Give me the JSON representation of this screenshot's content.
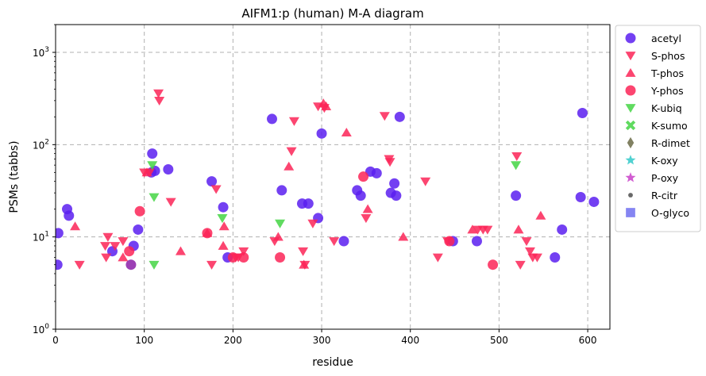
{
  "chart_data": {
    "type": "scatter",
    "title": "AIFM1:p (human) M-A diagram",
    "xlabel": "residue",
    "ylabel": "PSMs (tabbs)",
    "xlim": [
      0,
      625
    ],
    "ylim": [
      1,
      2000
    ],
    "yscale": "log",
    "grid": true,
    "legend_position": "right",
    "x_ticks": [
      {
        "value": 0,
        "label": "0"
      },
      {
        "value": 100,
        "label": "100"
      },
      {
        "value": 200,
        "label": "200"
      },
      {
        "value": 300,
        "label": "300"
      },
      {
        "value": 400,
        "label": "400"
      },
      {
        "value": 500,
        "label": "500"
      },
      {
        "value": 600,
        "label": "600"
      }
    ],
    "y_ticks": [
      {
        "value": 1,
        "base": "10",
        "exp": "0"
      },
      {
        "value": 10,
        "base": "10",
        "exp": "1"
      },
      {
        "value": 100,
        "base": "10",
        "exp": "2"
      },
      {
        "value": 1000,
        "base": "10",
        "exp": "3"
      }
    ],
    "series": [
      {
        "name": "acetyl",
        "marker": "circle",
        "color": "#5b1ff0",
        "points": [
          [
            2,
            5
          ],
          [
            3,
            11
          ],
          [
            13,
            20
          ],
          [
            15,
            17
          ],
          [
            64,
            7
          ],
          [
            88,
            8
          ],
          [
            93,
            12
          ],
          [
            108,
            50
          ],
          [
            109,
            80
          ],
          [
            112,
            52
          ],
          [
            127,
            54
          ],
          [
            176,
            40
          ],
          [
            189,
            21
          ],
          [
            194,
            6
          ],
          [
            244,
            190
          ],
          [
            255,
            32
          ],
          [
            278,
            23
          ],
          [
            285,
            23
          ],
          [
            296,
            16
          ],
          [
            300,
            132
          ],
          [
            325,
            9
          ],
          [
            340,
            32
          ],
          [
            344,
            28
          ],
          [
            355,
            51
          ],
          [
            362,
            49
          ],
          [
            378,
            30
          ],
          [
            382,
            38
          ],
          [
            384,
            28
          ],
          [
            388,
            200
          ],
          [
            448,
            9
          ],
          [
            475,
            9
          ],
          [
            519,
            28
          ],
          [
            563,
            6
          ],
          [
            571,
            12
          ],
          [
            592,
            27
          ],
          [
            594,
            220
          ],
          [
            607,
            24
          ]
        ]
      },
      {
        "name": "S-phos",
        "marker": "triangle-down",
        "color": "#fb2457",
        "points": [
          [
            27,
            5
          ],
          [
            56,
            8
          ],
          [
            57,
            6
          ],
          [
            59,
            10
          ],
          [
            67,
            8
          ],
          [
            76,
            9
          ],
          [
            100,
            50
          ],
          [
            106,
            50
          ],
          [
            116,
            360
          ],
          [
            117,
            300
          ],
          [
            130,
            24
          ],
          [
            176,
            5
          ],
          [
            181,
            33
          ],
          [
            203,
            6
          ],
          [
            206,
            6
          ],
          [
            212,
            7
          ],
          [
            247,
            9
          ],
          [
            266,
            85
          ],
          [
            269,
            180
          ],
          [
            279,
            7
          ],
          [
            281,
            5
          ],
          [
            290,
            14
          ],
          [
            296,
            260
          ],
          [
            303,
            250
          ],
          [
            314,
            9
          ],
          [
            350,
            16
          ],
          [
            371,
            205
          ],
          [
            376,
            70
          ],
          [
            377,
            65
          ],
          [
            417,
            40
          ],
          [
            431,
            6
          ],
          [
            442,
            9
          ],
          [
            476,
            12
          ],
          [
            482,
            12
          ],
          [
            487,
            12
          ],
          [
            520,
            75
          ],
          [
            524,
            5
          ],
          [
            531,
            9
          ],
          [
            535,
            7
          ],
          [
            538,
            6
          ],
          [
            543,
            6
          ]
        ]
      },
      {
        "name": "T-phos",
        "marker": "triangle-up",
        "color": "#fb2457",
        "points": [
          [
            22,
            13
          ],
          [
            76,
            6
          ],
          [
            103,
            50
          ],
          [
            141,
            7
          ],
          [
            171,
            11
          ],
          [
            189,
            8
          ],
          [
            190,
            13
          ],
          [
            251,
            10
          ],
          [
            263,
            58
          ],
          [
            280,
            5
          ],
          [
            302,
            280
          ],
          [
            305,
            260
          ],
          [
            328,
            135
          ],
          [
            352,
            20
          ],
          [
            392,
            10
          ],
          [
            470,
            12
          ],
          [
            522,
            12
          ],
          [
            547,
            17
          ]
        ]
      },
      {
        "name": "Y-phos",
        "marker": "circle",
        "color": "#fb2457",
        "points": [
          [
            83,
            7
          ],
          [
            95,
            19
          ],
          [
            171,
            11
          ],
          [
            200,
            6
          ],
          [
            212,
            6
          ],
          [
            253,
            6
          ],
          [
            347,
            45
          ],
          [
            444,
            9
          ],
          [
            493,
            5
          ]
        ]
      },
      {
        "name": "K-ubiq",
        "marker": "triangle-down",
        "color": "#44d544",
        "points": [
          [
            109,
            60
          ],
          [
            111,
            27
          ],
          [
            111,
            5
          ],
          [
            188,
            16
          ],
          [
            253,
            14
          ],
          [
            519,
            60
          ]
        ]
      },
      {
        "name": "K-sumo",
        "marker": "x",
        "color": "#44d544",
        "points": []
      },
      {
        "name": "R-dimet",
        "marker": "diamond",
        "color": "#6b6b47",
        "points": []
      },
      {
        "name": "K-oxy",
        "marker": "star",
        "color": "#33c9c9",
        "points": []
      },
      {
        "name": "P-oxy",
        "marker": "star",
        "color": "#c941c9",
        "points": []
      },
      {
        "name": "R-citr",
        "marker": "dot",
        "color": "#4d4d4d",
        "points": []
      },
      {
        "name": "O-glyco",
        "marker": "square",
        "color": "#7070f0",
        "points": []
      }
    ],
    "extra_points": [
      {
        "marker": "circle",
        "color": "#8b1fa8",
        "x": 85,
        "y": 5
      }
    ]
  }
}
